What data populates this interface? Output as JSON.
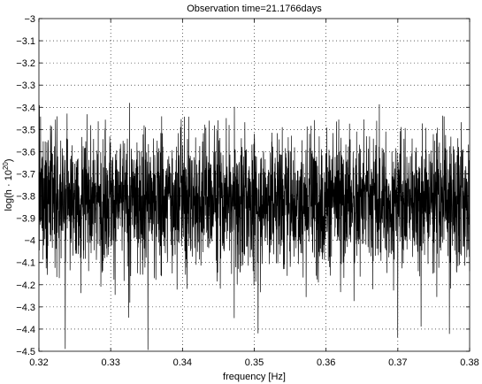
{
  "chart_data": {
    "type": "line",
    "title": "Observation time=21.1766days",
    "xlabel": "frequency [Hz]",
    "ylabel_prefix": "log(h · 10",
    "ylabel_exponent": "20",
    "ylabel_suffix": ")",
    "xlim": [
      0.32,
      0.38
    ],
    "ylim": [
      -4.5,
      -3.0
    ],
    "x_ticks": [
      0.32,
      0.33,
      0.34,
      0.35,
      0.36,
      0.37,
      0.38
    ],
    "x_tick_labels": [
      "0.32",
      "0.33",
      "0.34",
      "0.35",
      "0.36",
      "0.37",
      "0.38"
    ],
    "y_ticks": [
      -3.0,
      -3.1,
      -3.2,
      -3.3,
      -3.4,
      -3.5,
      -3.6,
      -3.7,
      -3.8,
      -3.9,
      -4.0,
      -4.1,
      -4.2,
      -4.3,
      -4.4,
      -4.5
    ],
    "y_tick_labels": [
      "−3",
      "−3.1",
      "−3.2",
      "−3.3",
      "−3.4",
      "−3.5",
      "−3.6",
      "−3.7",
      "−3.8",
      "−3.9",
      "−4",
      "−4.1",
      "−4.2",
      "−4.3",
      "−4.4",
      "−4.5"
    ],
    "grid": true,
    "series_color": "#000000",
    "series": [
      {
        "noise_band": {
          "mean": -3.82,
          "typical_min": -4.15,
          "typical_max": -3.55,
          "observed_min": -4.5,
          "observed_max": -3.38
        }
      }
    ]
  }
}
